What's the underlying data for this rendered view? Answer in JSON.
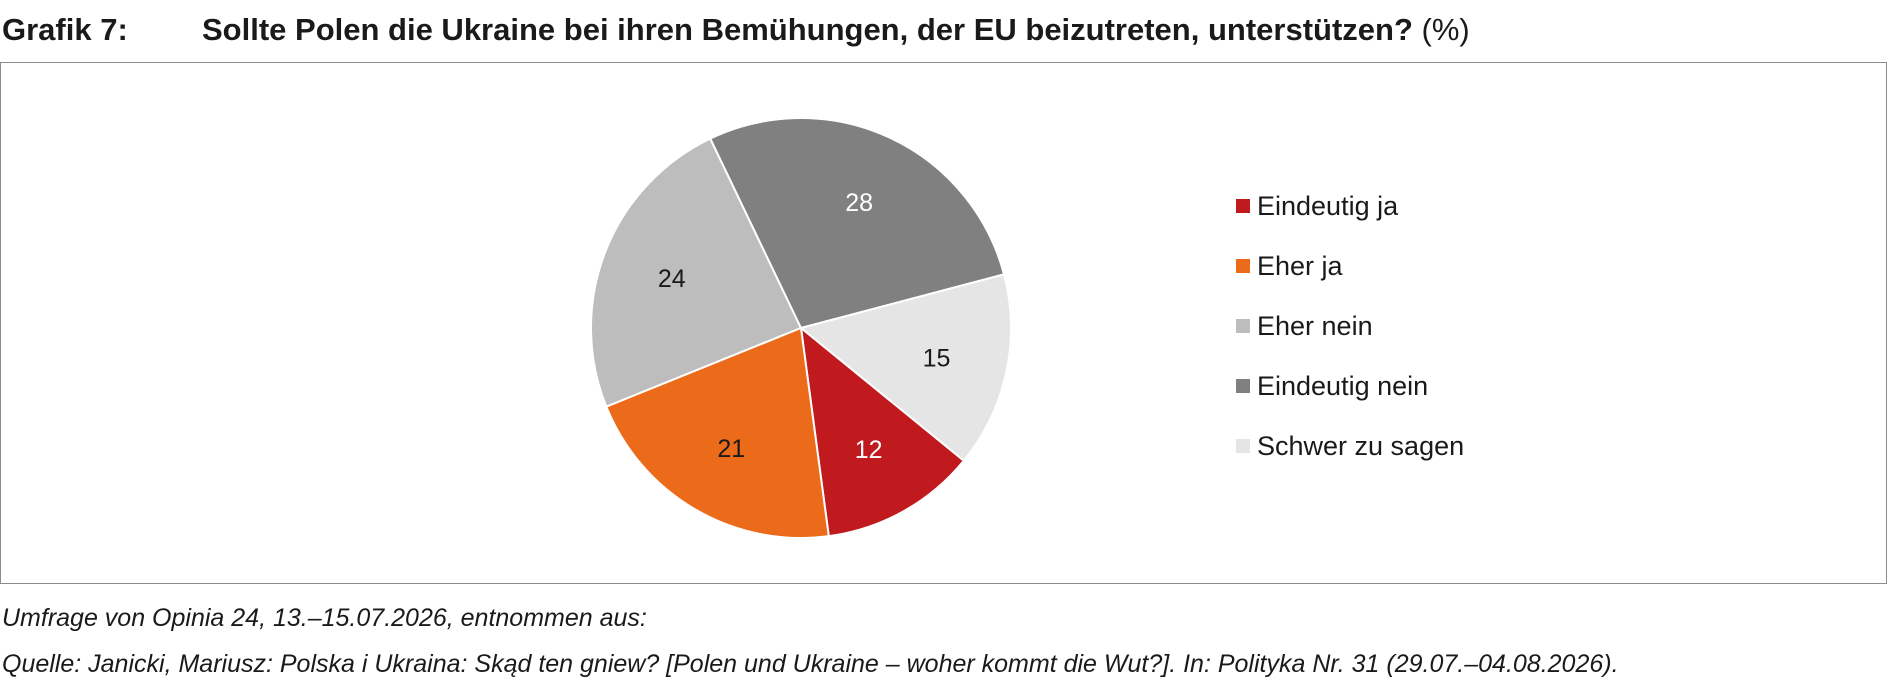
{
  "header": {
    "label": "Grafik 7:",
    "question": "Sollte Polen die Ukraine bei ihren Bemühungen, der EU beizutreten, unterstützen?",
    "unit": "(%)"
  },
  "footer": {
    "survey": "Umfrage von Opinia 24, 13.–15.07.2026, entnommen aus:",
    "source": "Quelle: Janicki, Mariusz: Polska i Ukraina: Skąd ten gniew? [Polen und Ukraine – woher kommt die Wut?]. In: Polityka Nr. 31 (29.07.–04.08.2026)."
  },
  "chart_data": {
    "type": "pie",
    "title": "Sollte Polen die Ukraine bei ihren Bemühungen, der EU beizutreten, unterstützen? (%)",
    "legend_position": "right",
    "start_direction": "clockwise from about 11 o'clock",
    "slices": [
      {
        "name": "Eindeutig ja",
        "value": 12,
        "color": "#c0191e",
        "label_color": "#ffffff"
      },
      {
        "name": "Eher ja",
        "value": 21,
        "color": "#ec6b1b",
        "label_color": "#1a1a1a"
      },
      {
        "name": "Eher nein",
        "value": 24,
        "color": "#bdbdbd",
        "label_color": "#1a1a1a"
      },
      {
        "name": "Eindeutig nein",
        "value": 28,
        "color": "#808080",
        "label_color": "#ffffff"
      },
      {
        "name": "Schwer zu sagen",
        "value": 15,
        "color": "#e5e5e5",
        "label_color": "#1a1a1a"
      }
    ],
    "draw_order": [
      "Eher nein",
      "Eindeutig nein",
      "Schwer zu sagen",
      "Eindeutig ja",
      "Eher ja"
    ]
  }
}
